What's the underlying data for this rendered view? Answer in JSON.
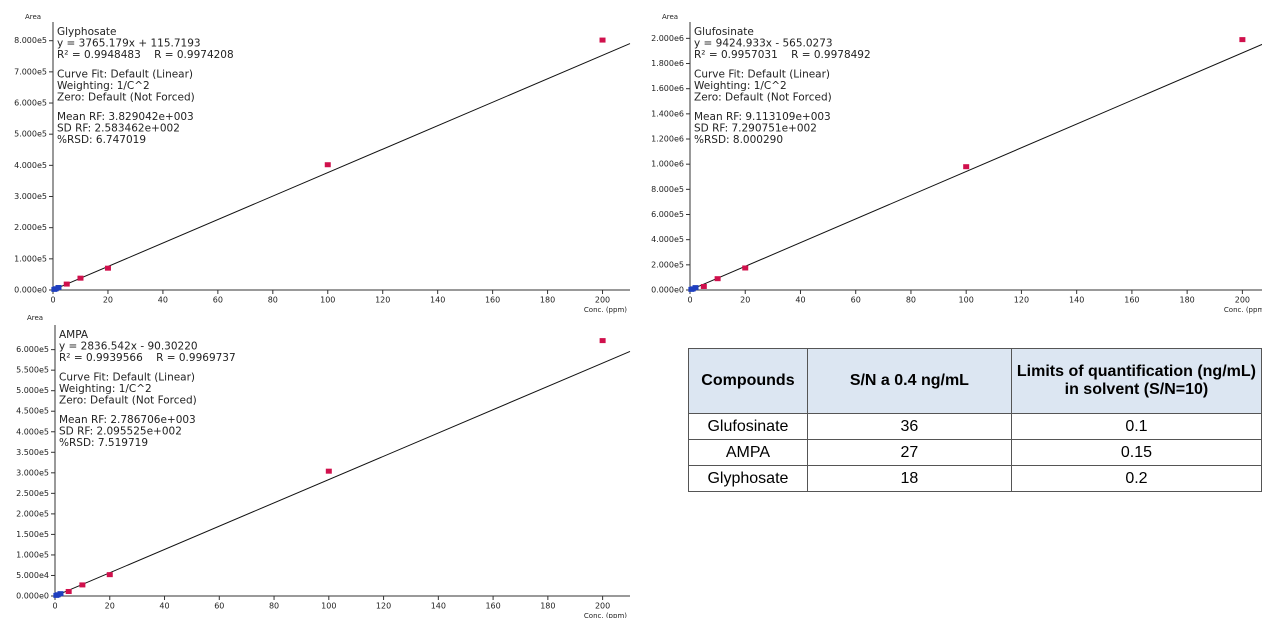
{
  "chart_data": [
    {
      "type": "scatter",
      "title": "Glyphosate",
      "x_label": "Conc. (ppm)",
      "y_label": "Area",
      "annotations": [
        [
          "y = 3765.179x + 115.7193",
          "R² = 0.9948483    R = 0.9974208"
        ],
        [
          "Curve Fit: Default (Linear)",
          "Weighting: 1/C^2",
          "Zero: Default (Not Forced)"
        ],
        [
          "Mean RF: 3.829042e+003",
          "SD RF: 2.583462e+002",
          "%RSD: 6.747019"
        ]
      ],
      "fit": {
        "slope": 3765.179,
        "intercept": 115.7193
      },
      "series": [
        {
          "color": "#d0104c",
          "x": [
            5,
            10,
            20,
            100,
            200
          ],
          "values": [
            19000,
            38000,
            70000,
            402000,
            802000
          ]
        },
        {
          "color": "#1f3fbf",
          "x": [
            0.5,
            1,
            2
          ],
          "values": [
            2000,
            4000,
            8000
          ]
        }
      ],
      "xlim": [
        0,
        210
      ],
      "xticks": [
        0,
        20,
        40,
        60,
        80,
        100,
        120,
        140,
        160,
        180,
        200
      ],
      "ylim": [
        0,
        860000
      ],
      "yticks": [
        {
          "value": 0,
          "label": "0.000e0"
        },
        {
          "value": 100000,
          "label": "1.000e5"
        },
        {
          "value": 200000,
          "label": "2.000e5"
        },
        {
          "value": 300000,
          "label": "3.000e5"
        },
        {
          "value": 400000,
          "label": "4.000e5"
        },
        {
          "value": 500000,
          "label": "5.000e5"
        },
        {
          "value": 600000,
          "label": "6.000e5"
        },
        {
          "value": 700000,
          "label": "7.000e5"
        },
        {
          "value": 800000,
          "label": "8.000e5"
        }
      ]
    },
    {
      "type": "scatter",
      "title": "Glufosinate",
      "x_label": "Conc. (ppm)",
      "y_label": "Area",
      "annotations": [
        [
          "y = 9424.933x - 565.0273",
          "R² = 0.9957031    R = 0.9978492"
        ],
        [
          "Curve Fit: Default (Linear)",
          "Weighting: 1/C^2",
          "Zero: Default (Not Forced)"
        ],
        [
          "Mean RF: 9.113109e+003",
          "SD RF: 7.290751e+002",
          "%RSD: 8.000290"
        ]
      ],
      "fit": {
        "slope": 9424.933,
        "intercept": -565.0273
      },
      "series": [
        {
          "color": "#d0104c",
          "x": [
            5,
            10,
            20,
            100,
            200
          ],
          "values": [
            28000,
            90000,
            175000,
            980000,
            1990000
          ]
        },
        {
          "color": "#1f3fbf",
          "x": [
            0.5,
            1,
            2
          ],
          "values": [
            5000,
            9000,
            19000
          ]
        }
      ],
      "xlim": [
        0,
        210
      ],
      "xticks": [
        0,
        20,
        40,
        60,
        80,
        100,
        120,
        140,
        160,
        180,
        200
      ],
      "ylim": [
        0,
        2130000
      ],
      "yticks": [
        {
          "value": 0,
          "label": "0.000e0"
        },
        {
          "value": 200000,
          "label": "2.000e5"
        },
        {
          "value": 400000,
          "label": "4.000e5"
        },
        {
          "value": 600000,
          "label": "6.000e5"
        },
        {
          "value": 800000,
          "label": "8.000e5"
        },
        {
          "value": 1000000,
          "label": "1.000e6"
        },
        {
          "value": 1200000,
          "label": "1.200e6"
        },
        {
          "value": 1400000,
          "label": "1.400e6"
        },
        {
          "value": 1600000,
          "label": "1.600e6"
        },
        {
          "value": 1800000,
          "label": "1.800e6"
        },
        {
          "value": 2000000,
          "label": "2.000e6"
        }
      ]
    },
    {
      "type": "scatter",
      "title": "AMPA",
      "x_label": "Conc. (ppm)",
      "y_label": "Area",
      "annotations": [
        [
          "y = 2836.542x - 90.30220",
          "R² = 0.9939566    R = 0.9969737"
        ],
        [
          "Curve Fit: Default (Linear)",
          "Weighting: 1/C^2",
          "Zero: Default (Not Forced)"
        ],
        [
          "Mean RF: 2.786706e+003",
          "SD RF: 2.095525e+002",
          "%RSD: 7.519719"
        ]
      ],
      "fit": {
        "slope": 2836.542,
        "intercept": -90.3022
      },
      "series": [
        {
          "color": "#d0104c",
          "x": [
            5,
            10,
            20,
            100,
            200
          ],
          "values": [
            11000,
            27000,
            52000,
            304000,
            622000
          ]
        },
        {
          "color": "#1f3fbf",
          "x": [
            0.5,
            1,
            2
          ],
          "values": [
            1500,
            3000,
            5700
          ]
        }
      ],
      "xlim": [
        0,
        210
      ],
      "xticks": [
        0,
        20,
        40,
        60,
        80,
        100,
        120,
        140,
        160,
        180,
        200
      ],
      "ylim": [
        0,
        660000
      ],
      "yticks": [
        {
          "value": 0,
          "label": "0.000e0"
        },
        {
          "value": 50000,
          "label": "5.000e4"
        },
        {
          "value": 100000,
          "label": "1.000e5"
        },
        {
          "value": 150000,
          "label": "1.500e5"
        },
        {
          "value": 200000,
          "label": "2.000e5"
        },
        {
          "value": 250000,
          "label": "2.500e5"
        },
        {
          "value": 300000,
          "label": "3.000e5"
        },
        {
          "value": 350000,
          "label": "3.500e5"
        },
        {
          "value": 400000,
          "label": "4.000e5"
        },
        {
          "value": 450000,
          "label": "4.500e5"
        },
        {
          "value": 500000,
          "label": "5.000e5"
        },
        {
          "value": 550000,
          "label": "5.500e5"
        },
        {
          "value": 600000,
          "label": "6.000e5"
        }
      ]
    }
  ],
  "table": {
    "header": [
      "Compounds",
      "S/N a 0.4 ng/mL",
      "Limits of quantification (ng/mL) in solvent (S/N=10)"
    ],
    "rows": [
      [
        "Glufosinate",
        "36",
        "0.1"
      ],
      [
        "AMPA",
        "27",
        "0.15"
      ],
      [
        "Glyphosate",
        "18",
        "0.2"
      ]
    ]
  }
}
